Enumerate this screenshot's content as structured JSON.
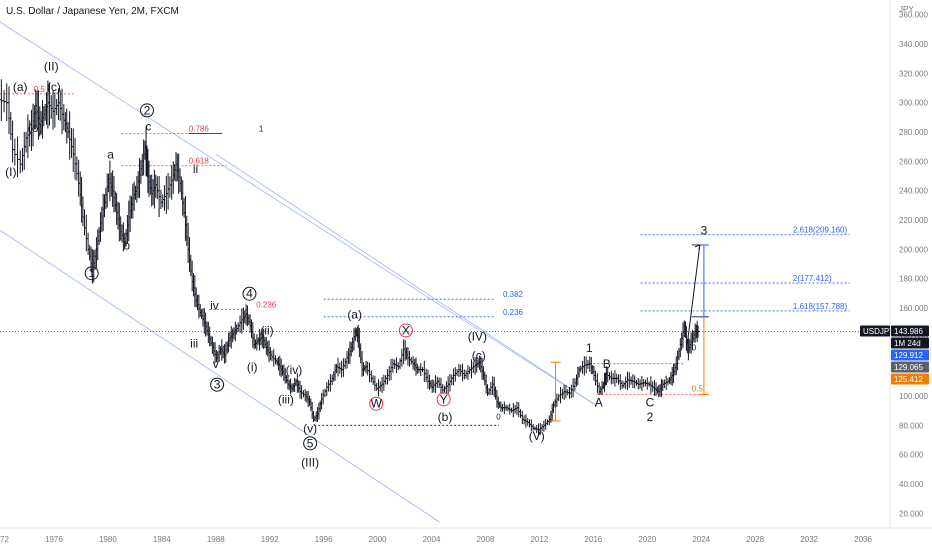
{
  "header": {
    "symbol_title": "U.S. Dollar / Japanese Yen, 2M, FXCM",
    "currency": "JPY"
  },
  "price_badges": [
    {
      "kind": "symbol",
      "text": "USDJPY",
      "bg": "#131722",
      "fg": "#ffffff"
    },
    {
      "kind": "last",
      "text": "143.986",
      "bg": "#131722",
      "fg": "#ffffff",
      "value": 143.986
    },
    {
      "kind": "countdown",
      "text": "1M 24d",
      "bg": "#131722",
      "fg": "#ffffff"
    },
    {
      "kind": "level",
      "text": "129.912",
      "bg": "#2962ff",
      "fg": "#ffffff",
      "value": 129.912
    },
    {
      "kind": "level",
      "text": "129.065",
      "bg": "#5d606b",
      "fg": "#ffffff",
      "value": 129.065
    },
    {
      "kind": "level",
      "text": "125.412",
      "bg": "#f57c00",
      "fg": "#ffffff",
      "value": 125.412
    }
  ],
  "chart_data": {
    "type": "ohlc",
    "title": "U.S. Dollar / Japanese Yen, 2M, FXCM",
    "xlabel": "",
    "ylabel": "JPY",
    "xlim": [
      1972,
      2038
    ],
    "ylim": [
      10,
      370
    ],
    "x_ticks": [
      "72",
      "1976",
      "1980",
      "1984",
      "1988",
      "1992",
      "1996",
      "2000",
      "2004",
      "2008",
      "2012",
      "2016",
      "2020",
      "2024",
      "2028",
      "2032",
      "2036"
    ],
    "y_ticks": [
      "20.000",
      "40.000",
      "60.000",
      "80.000",
      "100.000",
      "120.000",
      "140.000",
      "160.000",
      "180.000",
      "200.000",
      "220.000",
      "240.000",
      "260.000",
      "280.000",
      "300.000",
      "320.000",
      "340.000",
      "360.000"
    ],
    "price_line": 143.986,
    "price_path": [
      [
        1972.0,
        302
      ],
      [
        1972.6,
        300
      ],
      [
        1973.0,
        268
      ],
      [
        1973.6,
        258
      ],
      [
        1974.0,
        276
      ],
      [
        1974.4,
        282
      ],
      [
        1974.7,
        298
      ],
      [
        1975.0,
        285
      ],
      [
        1975.3,
        292
      ],
      [
        1975.6,
        300
      ],
      [
        1976.0,
        294
      ],
      [
        1976.4,
        300
      ],
      [
        1976.8,
        288
      ],
      [
        1977.1,
        280
      ],
      [
        1977.5,
        265
      ],
      [
        1977.9,
        245
      ],
      [
        1978.2,
        222
      ],
      [
        1978.6,
        200
      ],
      [
        1978.9,
        186
      ],
      [
        1979.2,
        200
      ],
      [
        1979.5,
        218
      ],
      [
        1979.8,
        232
      ],
      [
        1980.1,
        248
      ],
      [
        1980.4,
        240
      ],
      [
        1980.7,
        225
      ],
      [
        1981.0,
        212
      ],
      [
        1981.3,
        205
      ],
      [
        1981.6,
        222
      ],
      [
        1981.9,
        235
      ],
      [
        1982.2,
        242
      ],
      [
        1982.5,
        255
      ],
      [
        1982.8,
        270
      ],
      [
        1983.0,
        250
      ],
      [
        1983.3,
        238
      ],
      [
        1983.6,
        244
      ],
      [
        1984.0,
        232
      ],
      [
        1984.4,
        238
      ],
      [
        1984.8,
        247
      ],
      [
        1985.1,
        258
      ],
      [
        1985.4,
        245
      ],
      [
        1985.7,
        225
      ],
      [
        1986.0,
        200
      ],
      [
        1986.3,
        178
      ],
      [
        1986.6,
        165
      ],
      [
        1986.9,
        157
      ],
      [
        1987.2,
        150
      ],
      [
        1987.5,
        142
      ],
      [
        1987.8,
        133
      ],
      [
        1988.1,
        126
      ],
      [
        1988.4,
        132
      ],
      [
        1988.7,
        128
      ],
      [
        1989.0,
        138
      ],
      [
        1989.3,
        142
      ],
      [
        1989.6,
        146
      ],
      [
        1990.0,
        152
      ],
      [
        1990.3,
        156
      ],
      [
        1990.6,
        148
      ],
      [
        1990.9,
        135
      ],
      [
        1991.2,
        138
      ],
      [
        1991.5,
        140
      ],
      [
        1991.8,
        133
      ],
      [
        1992.1,
        128
      ],
      [
        1992.5,
        124
      ],
      [
        1992.8,
        120
      ],
      [
        1993.1,
        115
      ],
      [
        1993.4,
        108
      ],
      [
        1993.7,
        105
      ],
      [
        1994.0,
        110
      ],
      [
        1994.3,
        103
      ],
      [
        1994.7,
        100
      ],
      [
        1995.0,
        96
      ],
      [
        1995.3,
        84
      ],
      [
        1995.6,
        88
      ],
      [
        1995.9,
        98
      ],
      [
        1996.3,
        106
      ],
      [
        1996.7,
        112
      ],
      [
        1997.0,
        120
      ],
      [
        1997.4,
        118
      ],
      [
        1997.8,
        126
      ],
      [
        1998.1,
        133
      ],
      [
        1998.4,
        144
      ],
      [
        1998.6,
        140
      ],
      [
        1998.9,
        118
      ],
      [
        1999.2,
        120
      ],
      [
        1999.6,
        112
      ],
      [
        2000.0,
        105
      ],
      [
        2000.4,
        108
      ],
      [
        2000.8,
        114
      ],
      [
        2001.2,
        122
      ],
      [
        2001.6,
        120
      ],
      [
        2002.0,
        132
      ],
      [
        2002.3,
        126
      ],
      [
        2002.7,
        122
      ],
      [
        2003.0,
        118
      ],
      [
        2003.4,
        118
      ],
      [
        2003.8,
        110
      ],
      [
        2004.1,
        106
      ],
      [
        2004.5,
        110
      ],
      [
        2004.9,
        104
      ],
      [
        2005.3,
        108
      ],
      [
        2005.7,
        114
      ],
      [
        2006.1,
        118
      ],
      [
        2006.5,
        114
      ],
      [
        2006.9,
        118
      ],
      [
        2007.3,
        121
      ],
      [
        2007.6,
        123
      ],
      [
        2007.9,
        114
      ],
      [
        2008.2,
        102
      ],
      [
        2008.6,
        108
      ],
      [
        2008.9,
        96
      ],
      [
        2009.2,
        92
      ],
      [
        2009.6,
        92
      ],
      [
        2010.0,
        90
      ],
      [
        2010.4,
        92
      ],
      [
        2010.8,
        84
      ],
      [
        2011.2,
        82
      ],
      [
        2011.6,
        78
      ],
      [
        2012.0,
        77
      ],
      [
        2012.4,
        80
      ],
      [
        2012.8,
        84
      ],
      [
        2013.1,
        94
      ],
      [
        2013.5,
        100
      ],
      [
        2013.9,
        103
      ],
      [
        2014.3,
        102
      ],
      [
        2014.7,
        109
      ],
      [
        2015.0,
        118
      ],
      [
        2015.4,
        121
      ],
      [
        2015.8,
        122
      ],
      [
        2016.1,
        114
      ],
      [
        2016.5,
        103
      ],
      [
        2016.8,
        108
      ],
      [
        2017.0,
        115
      ],
      [
        2017.4,
        112
      ],
      [
        2017.8,
        112
      ],
      [
        2018.2,
        107
      ],
      [
        2018.6,
        111
      ],
      [
        2019.0,
        110
      ],
      [
        2019.4,
        108
      ],
      [
        2019.8,
        109
      ],
      [
        2020.2,
        108
      ],
      [
        2020.6,
        105
      ],
      [
        2020.9,
        103
      ],
      [
        2021.2,
        108
      ],
      [
        2021.6,
        110
      ],
      [
        2021.9,
        114
      ],
      [
        2022.2,
        122
      ],
      [
        2022.5,
        135
      ],
      [
        2022.8,
        148
      ],
      [
        2023.0,
        131
      ],
      [
        2023.3,
        137
      ],
      [
        2023.6,
        144
      ],
      [
        2023.8,
        144
      ]
    ],
    "projection": {
      "x": [
        2022.9,
        2023.9
      ],
      "y": [
        131,
        203
      ],
      "label": "3"
    },
    "trend_channel": [
      {
        "points": [
          [
            1972.0,
            355
          ],
          [
            2016.3,
            93
          ]
        ]
      },
      {
        "points": [
          [
            1972.0,
            213
          ],
          [
            2004.6,
            14
          ]
        ]
      },
      {
        "points": [
          [
            1988.0,
            265
          ],
          [
            2016.3,
            93
          ]
        ]
      }
    ],
    "horizontal_levels": [
      {
        "y": 306,
        "x": [
          1972.0,
          1977.5
        ],
        "color": "#f23645",
        "label": "0.5",
        "label_x": 1974.5,
        "style": "dotted"
      },
      {
        "y": 279,
        "x": [
          1981.0,
          1987.5
        ],
        "color": "#f23645",
        "label": "0.786",
        "label_x": 1986.0,
        "style": "dotted"
      },
      {
        "y": 279,
        "x": [
          1986.0,
          1988.5
        ],
        "color": "#131722",
        "label": "1",
        "label_x": 1991.2,
        "style": "solid"
      },
      {
        "y": 257,
        "x": [
          1981.0,
          1988.8
        ],
        "color": "#f23645",
        "label": "0.618",
        "label_x": 1986.0,
        "style": "dotted"
      },
      {
        "y": 166,
        "x": [
          1996.0,
          2008.7
        ],
        "color": "#2962ff",
        "label": "0.382",
        "label_x": 2009.3,
        "style": "dotted"
      },
      {
        "y": 159,
        "x": [
          1987.5,
          1990.5
        ],
        "color": "#f23645",
        "label": "0.236",
        "label_x": 1991.0,
        "style": "dotted"
      },
      {
        "y": 154,
        "x": [
          1996.0,
          2008.7
        ],
        "color": "#2962ff",
        "label": "0.236",
        "label_x": 2009.3,
        "style": "dotted"
      },
      {
        "y": 80,
        "x": [
          1995.3,
          2009.0
        ],
        "color": "#131722",
        "label": "",
        "label_x": 0,
        "style": "dotted"
      },
      {
        "y": 210,
        "x": [
          2019.5,
          2035.0
        ],
        "color": "#2962ff",
        "label": "2.618(209.160)",
        "label_x": 2030.8,
        "style": "dotted"
      },
      {
        "y": 177,
        "x": [
          2019.5,
          2035.0
        ],
        "color": "#2962ff",
        "label": "2(177.412)",
        "label_x": 2030.8,
        "style": "dotted"
      },
      {
        "y": 158,
        "x": [
          2019.5,
          2035.0
        ],
        "color": "#2962ff",
        "label": "1.618(157.788)",
        "label_x": 2030.8,
        "style": "dotted"
      },
      {
        "y": 101,
        "x": [
          2016.3,
          2024.3
        ],
        "color": "#f23645",
        "label": "",
        "label_x": 0,
        "style": "dotted"
      },
      {
        "y": 122,
        "x": [
          2016.0,
          2022.8
        ],
        "color": "#5d606b",
        "label": "",
        "label_x": 0,
        "style": "dotted"
      },
      {
        "y": 203,
        "x": [
          2023.3,
          2024.5
        ],
        "color": "#131722",
        "label": "",
        "label_x": 0,
        "style": "solid"
      },
      {
        "y": 154,
        "x": [
          2023.3,
          2024.5
        ],
        "color": "#131722",
        "label": "",
        "label_x": 0,
        "style": "solid"
      }
    ],
    "measure_bars": [
      {
        "x": 2013.2,
        "y": [
          83,
          123
        ],
        "color": "#f57c00"
      },
      {
        "x": 2024.2,
        "y": [
          101,
          154
        ],
        "color": "#f57c00"
      },
      {
        "x": 2024.2,
        "y": [
          154,
          203
        ],
        "color": "#2962ff"
      }
    ],
    "measure_labels": [
      {
        "text": "0.5",
        "x": 2023.3,
        "y": 103,
        "color": "#f57c00"
      },
      {
        "text": "0",
        "x": 2023.3,
        "y": 131,
        "color": "#131722"
      },
      {
        "text": "0",
        "x": 2008.8,
        "y": 84,
        "color": "#131722"
      }
    ],
    "wave_labels": [
      {
        "text": "(II)",
        "x": 1975.8,
        "y": 322,
        "style": "plain"
      },
      {
        "text": "(a)",
        "x": 1973.5,
        "y": 308,
        "style": "plain"
      },
      {
        "text": "(c)",
        "x": 1976.0,
        "y": 308,
        "style": "plain"
      },
      {
        "text": "(b)",
        "x": 1974.6,
        "y": 280,
        "style": "plain"
      },
      {
        "text": "(I)",
        "x": 1972.8,
        "y": 250,
        "style": "plain"
      },
      {
        "text": "2",
        "x": 1982.9,
        "y": 292,
        "style": "circle"
      },
      {
        "text": "c",
        "x": 1983.0,
        "y": 281,
        "style": "plain"
      },
      {
        "text": "a",
        "x": 1980.2,
        "y": 262,
        "style": "plain"
      },
      {
        "text": "b",
        "x": 1981.4,
        "y": 200,
        "style": "plain"
      },
      {
        "text": "i",
        "x": 1983.8,
        "y": 222,
        "style": "plain"
      },
      {
        "text": "ii",
        "x": 1986.5,
        "y": 252,
        "style": "plain"
      },
      {
        "text": "1",
        "x": 1978.8,
        "y": 181,
        "style": "circle"
      },
      {
        "text": "4",
        "x": 1990.5,
        "y": 167,
        "style": "circle"
      },
      {
        "text": "iv",
        "x": 1987.9,
        "y": 159,
        "style": "plain"
      },
      {
        "text": "(ii)",
        "x": 1991.8,
        "y": 142,
        "style": "plain"
      },
      {
        "text": "iii",
        "x": 1986.4,
        "y": 133,
        "style": "plain"
      },
      {
        "text": "(i)",
        "x": 1990.7,
        "y": 117,
        "style": "plain"
      },
      {
        "text": "v",
        "x": 1988.0,
        "y": 119,
        "style": "plain"
      },
      {
        "text": "3",
        "x": 1988.1,
        "y": 105,
        "style": "circle"
      },
      {
        "text": "(iv)",
        "x": 1993.8,
        "y": 115,
        "style": "plain"
      },
      {
        "text": "(iii)",
        "x": 1993.2,
        "y": 95,
        "style": "plain"
      },
      {
        "text": "(v)",
        "x": 1995.0,
        "y": 75,
        "style": "plain"
      },
      {
        "text": "5",
        "x": 1995.0,
        "y": 65,
        "style": "circle"
      },
      {
        "text": "(III)",
        "x": 1995.0,
        "y": 52,
        "style": "plain"
      },
      {
        "text": "(a)",
        "x": 1998.3,
        "y": 153,
        "style": "plain"
      },
      {
        "text": "X",
        "x": 2002.1,
        "y": 142,
        "style": "circle-red"
      },
      {
        "text": "W",
        "x": 1999.9,
        "y": 92,
        "style": "circle-red"
      },
      {
        "text": "Y",
        "x": 2004.9,
        "y": 95,
        "style": "circle-red"
      },
      {
        "text": "(b)",
        "x": 2005.0,
        "y": 83,
        "style": "plain"
      },
      {
        "text": "(IV)",
        "x": 2007.4,
        "y": 138,
        "style": "plain"
      },
      {
        "text": "(c)",
        "x": 2007.5,
        "y": 125,
        "style": "plain"
      },
      {
        "text": "(V)",
        "x": 2011.8,
        "y": 70,
        "style": "plain"
      },
      {
        "text": "1",
        "x": 2015.7,
        "y": 130,
        "style": "plain"
      },
      {
        "text": "B",
        "x": 2017.0,
        "y": 119,
        "style": "plain"
      },
      {
        "text": "A",
        "x": 2016.4,
        "y": 93,
        "style": "plain"
      },
      {
        "text": "C",
        "x": 2020.2,
        "y": 93,
        "style": "plain"
      },
      {
        "text": "2",
        "x": 2020.2,
        "y": 83,
        "style": "plain"
      },
      {
        "text": "3",
        "x": 2024.2,
        "y": 210,
        "style": "plain"
      }
    ]
  }
}
